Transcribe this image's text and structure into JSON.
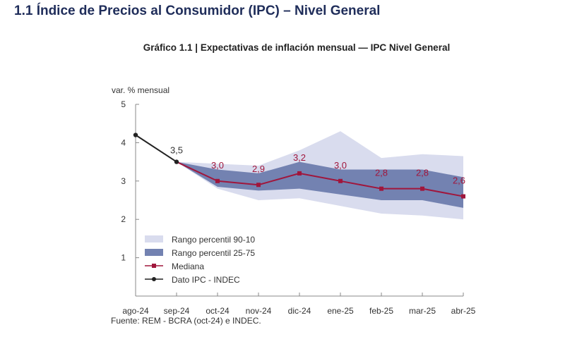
{
  "page": {
    "section_title": "1.1 Índice de Precios al Consumidor (IPC) – Nivel General",
    "chart_title": "Gráfico 1.1 | Expectativas de inflación mensual — IPC Nivel General",
    "source": "Fuente: REM - BCRA (oct-24) e INDEC."
  },
  "colors": {
    "band_90_10": "#d9dcee",
    "band_25_75": "#7382b1",
    "median": "#a0163c",
    "ipc": "#222222",
    "axis": "#888888",
    "title": "#1f2d5a"
  },
  "chart_data": {
    "type": "area",
    "title": "Expectativas de inflación mensual — IPC Nivel General",
    "ylabel": "var. % mensual",
    "xlabel": "",
    "ylim": [
      0,
      5
    ],
    "yticks": [
      1,
      2,
      3,
      4,
      5
    ],
    "grid": false,
    "legend_position": "bottom-left",
    "categories": [
      "ago-24",
      "sep-24",
      "oct-24",
      "nov-24",
      "dic-24",
      "ene-25",
      "feb-25",
      "mar-25",
      "abr-25"
    ],
    "series": [
      {
        "name": "Rango percentil 90-10",
        "kind": "band",
        "upper": [
          null,
          3.5,
          3.45,
          3.4,
          3.8,
          4.3,
          3.6,
          3.7,
          3.65
        ],
        "lower": [
          null,
          3.5,
          2.8,
          2.5,
          2.55,
          2.35,
          2.15,
          2.1,
          2.0
        ]
      },
      {
        "name": "Rango percentil 25-75",
        "kind": "band",
        "upper": [
          null,
          3.5,
          3.3,
          3.2,
          3.5,
          3.3,
          3.3,
          3.3,
          3.1
        ],
        "lower": [
          null,
          3.5,
          2.85,
          2.75,
          2.8,
          2.65,
          2.5,
          2.5,
          2.3
        ]
      },
      {
        "name": "Mediana",
        "kind": "line",
        "values": [
          null,
          3.5,
          3.0,
          2.9,
          3.2,
          3.0,
          2.8,
          2.8,
          2.6
        ],
        "labels": [
          null,
          null,
          "3,0",
          "2,9",
          "3,2",
          "3,0",
          "2,8",
          "2,8",
          "2,6"
        ]
      },
      {
        "name": "Dato IPC - INDEC",
        "kind": "line",
        "values": [
          4.2,
          3.5,
          null,
          null,
          null,
          null,
          null,
          null,
          null
        ],
        "labels": [
          null,
          "3,5",
          null,
          null,
          null,
          null,
          null,
          null,
          null
        ]
      }
    ]
  }
}
